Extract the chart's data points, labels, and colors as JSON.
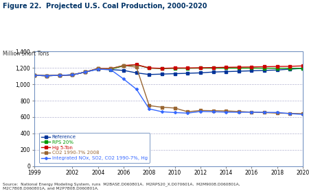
{
  "title": "Figure 22.  Projected U.S. Coal Production, 2000-2020",
  "ylabel": "Million Short Tons",
  "source": "Source:  National Energy Modeling System, runs  M2BASE.D060801A,  M2RPS20_X.D070601A,  M2M9008.D060801A,\nM2C7B08.D060801A, and M2P7B08.D060801A.",
  "xlim": [
    1999,
    2020
  ],
  "ylim": [
    0,
    1400
  ],
  "yticks": [
    0,
    200,
    400,
    600,
    800,
    1000,
    1200,
    1400
  ],
  "xticks": [
    1999,
    2002,
    2004,
    2006,
    2008,
    2010,
    2012,
    2014,
    2016,
    2018,
    2020
  ],
  "series": [
    {
      "label": "Reference",
      "color": "#003399",
      "marker": "s",
      "markersize": 2.5,
      "linewidth": 1.0,
      "x": [
        1999,
        2000,
        2001,
        2002,
        2003,
        2004,
        2005,
        2006,
        2007,
        2008,
        2009,
        2010,
        2011,
        2012,
        2013,
        2014,
        2015,
        2016,
        2017,
        2018,
        2019,
        2020
      ],
      "y": [
        1110,
        1105,
        1110,
        1115,
        1150,
        1185,
        1180,
        1170,
        1140,
        1120,
        1125,
        1130,
        1135,
        1140,
        1150,
        1155,
        1160,
        1165,
        1170,
        1175,
        1185,
        1195
      ]
    },
    {
      "label": "RPS 20%",
      "color": "#009900",
      "marker": "s",
      "markersize": 2.5,
      "linewidth": 1.0,
      "x": [
        1999,
        2000,
        2001,
        2002,
        2003,
        2004,
        2005,
        2006,
        2007,
        2008,
        2009,
        2010,
        2011,
        2012,
        2013,
        2014,
        2015,
        2016,
        2017,
        2018,
        2019,
        2020
      ],
      "y": [
        1110,
        1105,
        1110,
        1115,
        1150,
        1190,
        1185,
        1225,
        1238,
        1198,
        1193,
        1195,
        1196,
        1198,
        1198,
        1198,
        1198,
        1198,
        1197,
        1196,
        1195,
        1194
      ]
    },
    {
      "label": "Hg 5-Ton",
      "color": "#cc0000",
      "marker": "s",
      "markersize": 2.5,
      "linewidth": 1.0,
      "x": [
        1999,
        2000,
        2001,
        2002,
        2003,
        2004,
        2005,
        2006,
        2007,
        2008,
        2009,
        2010,
        2011,
        2012,
        2013,
        2014,
        2015,
        2016,
        2017,
        2018,
        2019,
        2020
      ],
      "y": [
        1110,
        1105,
        1110,
        1115,
        1150,
        1193,
        1192,
        1230,
        1240,
        1200,
        1195,
        1200,
        1200,
        1202,
        1205,
        1208,
        1210,
        1212,
        1215,
        1218,
        1220,
        1225
      ]
    },
    {
      "label": "CO2 1990-7% 2008",
      "color": "#996633",
      "marker": "s",
      "markersize": 2.5,
      "linewidth": 1.0,
      "x": [
        1999,
        2000,
        2001,
        2002,
        2003,
        2004,
        2005,
        2006,
        2007,
        2008,
        2009,
        2010,
        2011,
        2012,
        2013,
        2014,
        2015,
        2016,
        2017,
        2018,
        2019,
        2020
      ],
      "y": [
        1110,
        1105,
        1110,
        1115,
        1150,
        1193,
        1192,
        1230,
        1210,
        740,
        720,
        710,
        665,
        680,
        678,
        675,
        668,
        660,
        655,
        648,
        645,
        642
      ]
    },
    {
      "label": "Integrated NOx, SO2, CO2 1990-7%, Hg",
      "color": "#3366ff",
      "marker": "P",
      "markersize": 2.5,
      "linewidth": 1.0,
      "x": [
        1999,
        2000,
        2001,
        2002,
        2003,
        2004,
        2005,
        2006,
        2007,
        2008,
        2009,
        2010,
        2011,
        2012,
        2013,
        2014,
        2015,
        2016,
        2017,
        2018,
        2019,
        2020
      ],
      "y": [
        1110,
        1105,
        1110,
        1115,
        1150,
        1185,
        1178,
        1065,
        940,
        700,
        665,
        655,
        648,
        668,
        665,
        660,
        658,
        660,
        658,
        656,
        642,
        632
      ]
    }
  ],
  "background_color": "#ffffff",
  "plot_bg_color": "#ffffff",
  "grid_color": "#aaaacc",
  "title_color": "#003366",
  "ylabel_color": "#333333",
  "source_color": "#333333"
}
